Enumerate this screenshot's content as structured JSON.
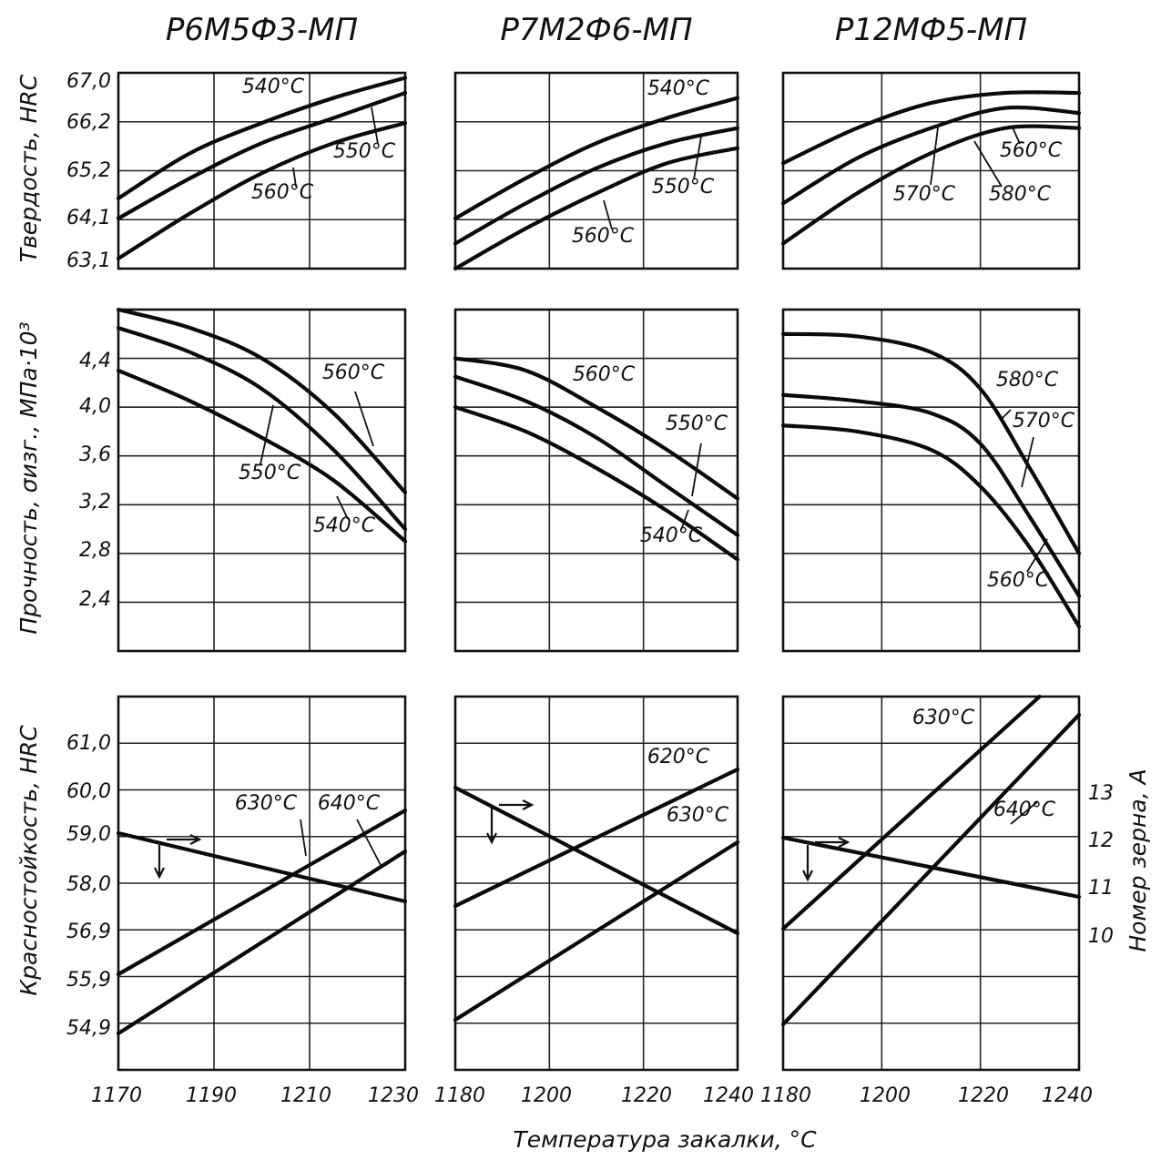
{
  "x_label": "Температура закалки, °C",
  "row_labels": [
    "Твердость, HRC",
    "Прочность, σизг., МПа·10³",
    "Красностойкость, HRC"
  ],
  "right_label": "Номер зерна, А",
  "chart_data": [
    {
      "type": "line",
      "title": "Р6М5Ф3-МП",
      "row": 0,
      "col": 0,
      "xlim": [
        1170,
        1230
      ],
      "ylim": [
        63.1,
        67.0
      ],
      "x_ticks": [],
      "y_ticks": [
        "67,0",
        "66,2",
        "65,2",
        "64,1",
        "63,1"
      ],
      "series": [
        {
          "name": "540°C",
          "x": [
            1170,
            1185,
            1200,
            1215,
            1230
          ],
          "y": [
            64.5,
            65.4,
            66.0,
            66.5,
            66.9
          ]
        },
        {
          "name": "550°C",
          "x": [
            1170,
            1185,
            1200,
            1215,
            1230
          ],
          "y": [
            64.1,
            64.9,
            65.6,
            66.1,
            66.6
          ]
        },
        {
          "name": "560°C",
          "x": [
            1170,
            1185,
            1200,
            1215,
            1230
          ],
          "y": [
            63.3,
            64.2,
            65.0,
            65.6,
            66.0
          ]
        }
      ]
    },
    {
      "type": "line",
      "title": "Р7М2Ф6-МП",
      "row": 0,
      "col": 1,
      "xlim": [
        1180,
        1240
      ],
      "ylim": [
        63.1,
        67.0
      ],
      "x_ticks": [],
      "y_ticks": [],
      "series": [
        {
          "name": "540°C",
          "x": [
            1180,
            1195,
            1210,
            1225,
            1240
          ],
          "y": [
            64.1,
            64.9,
            65.6,
            66.1,
            66.5
          ]
        },
        {
          "name": "550°C",
          "x": [
            1180,
            1195,
            1210,
            1225,
            1240
          ],
          "y": [
            63.6,
            64.4,
            65.1,
            65.6,
            65.9
          ]
        },
        {
          "name": "560°C",
          "x": [
            1180,
            1195,
            1210,
            1225,
            1240
          ],
          "y": [
            63.1,
            63.9,
            64.6,
            65.2,
            65.5
          ]
        }
      ]
    },
    {
      "type": "line",
      "title": "Р12МФ5-МП",
      "row": 0,
      "col": 2,
      "xlim": [
        1180,
        1240
      ],
      "ylim": [
        63.1,
        67.0
      ],
      "x_ticks": [],
      "y_ticks": [],
      "series": [
        {
          "name": "560°C",
          "x": [
            1180,
            1195,
            1210,
            1225,
            1240
          ],
          "y": [
            65.2,
            65.9,
            66.4,
            66.6,
            66.6
          ]
        },
        {
          "name": "570°C",
          "x": [
            1180,
            1195,
            1210,
            1225,
            1240
          ],
          "y": [
            64.4,
            65.3,
            65.9,
            66.3,
            66.2
          ]
        },
        {
          "name": "580°C",
          "x": [
            1180,
            1195,
            1210,
            1225,
            1240
          ],
          "y": [
            63.6,
            64.6,
            65.4,
            65.9,
            65.9
          ]
        }
      ]
    },
    {
      "type": "line",
      "title": "",
      "row": 1,
      "col": 0,
      "xlim": [
        1170,
        1230
      ],
      "ylim": [
        2.0,
        4.8
      ],
      "x_ticks": [],
      "y_ticks": [
        "4,4",
        "4,0",
        "3,6",
        "3,2",
        "2,8",
        "2,4"
      ],
      "series": [
        {
          "name": "560°C",
          "x": [
            1170,
            1185,
            1200,
            1215,
            1230
          ],
          "y": [
            4.8,
            4.65,
            4.4,
            3.95,
            3.3
          ]
        },
        {
          "name": "550°C",
          "x": [
            1170,
            1185,
            1200,
            1215,
            1230
          ],
          "y": [
            4.65,
            4.45,
            4.15,
            3.65,
            3.0
          ]
        },
        {
          "name": "540°C",
          "x": [
            1170,
            1185,
            1200,
            1215,
            1230
          ],
          "y": [
            4.3,
            4.05,
            3.75,
            3.4,
            2.9
          ]
        }
      ]
    },
    {
      "type": "line",
      "title": "",
      "row": 1,
      "col": 1,
      "xlim": [
        1180,
        1240
      ],
      "ylim": [
        2.0,
        4.8
      ],
      "x_ticks": [],
      "y_ticks": [],
      "series": [
        {
          "name": "560°C",
          "x": [
            1180,
            1195,
            1210,
            1225,
            1240
          ],
          "y": [
            4.4,
            4.3,
            4.0,
            3.65,
            3.25
          ]
        },
        {
          "name": "550°C",
          "x": [
            1180,
            1195,
            1210,
            1225,
            1240
          ],
          "y": [
            4.25,
            4.05,
            3.75,
            3.35,
            2.95
          ]
        },
        {
          "name": "540°C",
          "x": [
            1180,
            1195,
            1210,
            1225,
            1240
          ],
          "y": [
            4.0,
            3.8,
            3.5,
            3.15,
            2.75
          ]
        }
      ]
    },
    {
      "type": "line",
      "title": "",
      "row": 1,
      "col": 2,
      "xlim": [
        1180,
        1240
      ],
      "ylim": [
        2.0,
        4.8
      ],
      "x_ticks": [],
      "y_ticks": [],
      "series": [
        {
          "name": "580°C",
          "x": [
            1180,
            1195,
            1210,
            1220,
            1230,
            1240
          ],
          "y": [
            4.6,
            4.58,
            4.45,
            4.15,
            3.5,
            2.8
          ]
        },
        {
          "name": "570°C",
          "x": [
            1180,
            1195,
            1210,
            1220,
            1230,
            1240
          ],
          "y": [
            4.1,
            4.05,
            3.95,
            3.7,
            3.1,
            2.45
          ]
        },
        {
          "name": "560°C",
          "x": [
            1180,
            1195,
            1210,
            1220,
            1230,
            1240
          ],
          "y": [
            3.85,
            3.8,
            3.65,
            3.35,
            2.85,
            2.2
          ]
        }
      ]
    },
    {
      "type": "line",
      "title": "",
      "row": 2,
      "col": 0,
      "xlim": [
        1170,
        1230
      ],
      "ylim": [
        53.8,
        62.0
      ],
      "x_ticks": [
        "1170",
        "1190",
        "1210",
        "1230"
      ],
      "y_ticks": [
        "61,0",
        "60,0",
        "59,0",
        "58,0",
        "56,9",
        "55,9",
        "54,9"
      ],
      "series": [
        {
          "name": "630°C",
          "x": [
            1170,
            1230
          ],
          "y": [
            55.9,
            59.5
          ]
        },
        {
          "name": "640°C",
          "x": [
            1170,
            1230
          ],
          "y": [
            54.6,
            58.6
          ]
        },
        {
          "name": "",
          "x": [
            1170,
            1230
          ],
          "y": [
            59.0,
            57.5
          ]
        }
      ]
    },
    {
      "type": "line",
      "title": "",
      "row": 2,
      "col": 1,
      "xlim": [
        1180,
        1240
      ],
      "ylim": [
        53.8,
        62.0
      ],
      "x_ticks": [
        "1180",
        "1200",
        "1220",
        "1240"
      ],
      "y_ticks": [],
      "series": [
        {
          "name": "620°C",
          "x": [
            1180,
            1240
          ],
          "y": [
            57.4,
            60.4
          ]
        },
        {
          "name": "630°C",
          "x": [
            1180,
            1240
          ],
          "y": [
            54.9,
            58.8
          ]
        },
        {
          "name": "",
          "x": [
            1180,
            1240
          ],
          "y": [
            60.0,
            56.8
          ]
        }
      ]
    },
    {
      "type": "line",
      "title": "",
      "row": 2,
      "col": 2,
      "xlim": [
        1180,
        1240
      ],
      "ylim": [
        53.8,
        62.0
      ],
      "x_ticks": [
        "1180",
        "1200",
        "1220",
        "1240"
      ],
      "y_ticks": [],
      "right_ticks": [
        "13",
        "12",
        "11",
        "10"
      ],
      "series": [
        {
          "name": "630°C",
          "x": [
            1180,
            1232
          ],
          "y": [
            56.9,
            62.0
          ]
        },
        {
          "name": "640°C",
          "x": [
            1180,
            1240
          ],
          "y": [
            54.8,
            61.6
          ]
        },
        {
          "name": "",
          "x": [
            1180,
            1240
          ],
          "y": [
            58.9,
            57.6
          ]
        }
      ]
    }
  ]
}
